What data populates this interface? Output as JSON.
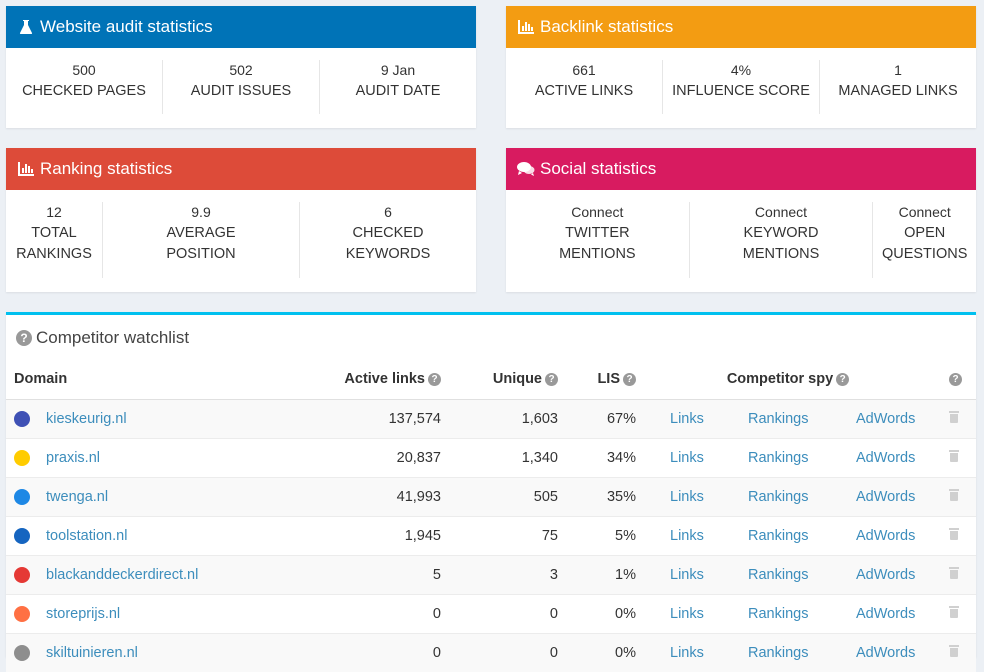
{
  "cards": [
    {
      "title": "Website audit statistics",
      "icon": "flask-icon",
      "color": "#0073b7",
      "stats": [
        {
          "value": "500",
          "label": "CHECKED PAGES"
        },
        {
          "value": "502",
          "label": "AUDIT ISSUES"
        },
        {
          "value": "9 Jan",
          "label": "AUDIT DATE"
        }
      ]
    },
    {
      "title": "Backlink statistics",
      "icon": "bar-chart-icon",
      "color": "#f39c12",
      "stats": [
        {
          "value": "661",
          "label": "ACTIVE LINKS"
        },
        {
          "value": "4%",
          "label": "INFLUENCE SCORE"
        },
        {
          "value": "1",
          "label": "MANAGED LINKS"
        }
      ]
    },
    {
      "title": "Ranking statistics",
      "icon": "bar-chart-icon",
      "color": "#dd4b39",
      "stats": [
        {
          "value": "12",
          "label": "TOTAL RANKINGS"
        },
        {
          "value": "9.9",
          "label": "AVERAGE POSITION"
        },
        {
          "value": "6",
          "label": "CHECKED KEYWORDS"
        }
      ]
    },
    {
      "title": "Social statistics",
      "icon": "comments-icon",
      "color": "#d81b60",
      "stats": [
        {
          "value": "Connect",
          "label": "TWITTER MENTIONS"
        },
        {
          "value": "Connect",
          "label": "KEYWORD MENTIONS"
        },
        {
          "value": "Connect",
          "label": "OPEN QUESTIONS"
        }
      ]
    }
  ],
  "watchlist": {
    "title": "Competitor watchlist",
    "accent": "#00c0ef",
    "columns": {
      "domain": "Domain",
      "active_links": "Active links",
      "unique": "Unique",
      "lis": "LIS",
      "spy": "Competitor spy"
    },
    "rows": [
      {
        "domain": "kieskeurig.nl",
        "active_links": "137,574",
        "unique": "1,603",
        "lis": "67%",
        "favicon": "#3f51b5",
        "links": "Links",
        "rankings": "Rankings",
        "adwords": "AdWords"
      },
      {
        "domain": "praxis.nl",
        "active_links": "20,837",
        "unique": "1,340",
        "lis": "34%",
        "favicon": "#ffcc00",
        "links": "Links",
        "rankings": "Rankings",
        "adwords": "AdWords"
      },
      {
        "domain": "twenga.nl",
        "active_links": "41,993",
        "unique": "505",
        "lis": "35%",
        "favicon": "#1e88e5",
        "links": "Links",
        "rankings": "Rankings",
        "adwords": "AdWords"
      },
      {
        "domain": "toolstation.nl",
        "active_links": "1,945",
        "unique": "75",
        "lis": "5%",
        "favicon": "#1565c0",
        "links": "Links",
        "rankings": "Rankings",
        "adwords": "AdWords"
      },
      {
        "domain": "blackanddeckerdirect.nl",
        "active_links": "5",
        "unique": "3",
        "lis": "1%",
        "favicon": "#e53935",
        "links": "Links",
        "rankings": "Rankings",
        "adwords": "AdWords"
      },
      {
        "domain": "storeprijs.nl",
        "active_links": "0",
        "unique": "0",
        "lis": "0%",
        "favicon": "#ff7043",
        "links": "Links",
        "rankings": "Rankings",
        "adwords": "AdWords"
      },
      {
        "domain": "skiltuinieren.nl",
        "active_links": "0",
        "unique": "0",
        "lis": "0%",
        "favicon": "#8e8e8e",
        "links": "Links",
        "rankings": "Rankings",
        "adwords": "AdWords"
      }
    ]
  }
}
